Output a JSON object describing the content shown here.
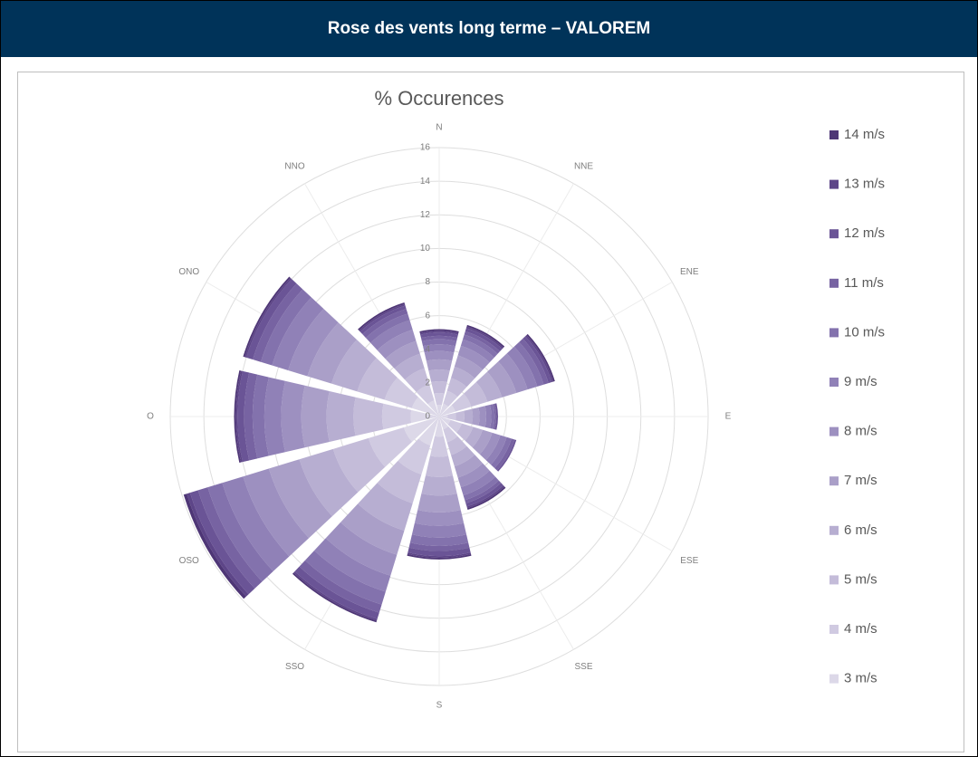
{
  "header": {
    "title": "Rose des vents long terme – VALOREM"
  },
  "chart_data": {
    "type": "polar_bar",
    "title": "% Occurences",
    "categories": [
      "N",
      "NNE",
      "ENE",
      "E",
      "ESE",
      "SSE",
      "S",
      "SSO",
      "OSO",
      "O",
      "ONO",
      "NNO"
    ],
    "rlim": [
      0,
      16
    ],
    "rticks": [
      0,
      2,
      4,
      6,
      8,
      10,
      12,
      14,
      16
    ],
    "grid": true,
    "stacked": true,
    "legend": "right",
    "series": [
      {
        "name": "3 m/s",
        "color": "#dcd8e8",
        "values": [
          0.7,
          0.8,
          1.0,
          0.5,
          0.7,
          0.8,
          1.2,
          1.8,
          2.2,
          1.7,
          1.7,
          1.0
        ]
      },
      {
        "name": "4 m/s",
        "color": "#d0cae1",
        "values": [
          0.7,
          0.8,
          1.0,
          0.5,
          0.7,
          0.8,
          1.2,
          1.8,
          2.2,
          1.7,
          1.7,
          1.0
        ]
      },
      {
        "name": "5 m/s",
        "color": "#c4bcd9",
        "values": [
          0.7,
          0.8,
          1.0,
          0.5,
          0.7,
          0.8,
          1.2,
          1.8,
          2.2,
          1.7,
          1.7,
          1.0
        ]
      },
      {
        "name": "6 m/s",
        "color": "#b7aed1",
        "values": [
          0.7,
          0.7,
          0.9,
          0.5,
          0.6,
          0.7,
          1.1,
          1.7,
          2.1,
          1.6,
          1.6,
          0.9
        ]
      },
      {
        "name": "7 m/s",
        "color": "#aa9fc8",
        "values": [
          0.6,
          0.7,
          0.9,
          0.4,
          0.6,
          0.7,
          1.0,
          1.5,
          1.9,
          1.5,
          1.5,
          0.8
        ]
      },
      {
        "name": "8 m/s",
        "color": "#9d90c0",
        "values": [
          0.5,
          0.6,
          0.7,
          0.4,
          0.5,
          0.6,
          0.8,
          1.3,
          1.6,
          1.2,
          1.2,
          0.7
        ]
      },
      {
        "name": "9 m/s",
        "color": "#9081b7",
        "values": [
          0.4,
          0.4,
          0.6,
          0.3,
          0.4,
          0.5,
          0.7,
          1.0,
          1.3,
          1.0,
          1.0,
          0.6
        ]
      },
      {
        "name": "10 m/s",
        "color": "#8372ad",
        "values": [
          0.3,
          0.3,
          0.4,
          0.2,
          0.3,
          0.3,
          0.5,
          0.8,
          0.9,
          0.7,
          0.7,
          0.4
        ]
      },
      {
        "name": "11 m/s",
        "color": "#7763a2",
        "values": [
          0.2,
          0.2,
          0.3,
          0.1,
          0.2,
          0.2,
          0.3,
          0.5,
          0.6,
          0.5,
          0.5,
          0.3
        ]
      },
      {
        "name": "12 m/s",
        "color": "#6a5496",
        "values": [
          0.2,
          0.2,
          0.2,
          0.1,
          0.1,
          0.2,
          0.3,
          0.4,
          0.5,
          0.4,
          0.4,
          0.2
        ]
      },
      {
        "name": "13 m/s",
        "color": "#5d4588",
        "values": [
          0.1,
          0.1,
          0.1,
          0.0,
          0.0,
          0.1,
          0.1,
          0.1,
          0.2,
          0.1,
          0.1,
          0.1
        ]
      },
      {
        "name": "14 m/s",
        "color": "#4e3676",
        "values": [
          0.1,
          0.1,
          0.1,
          0.0,
          0.0,
          0.1,
          0.1,
          0.1,
          0.2,
          0.1,
          0.1,
          0.1
        ]
      }
    ]
  }
}
